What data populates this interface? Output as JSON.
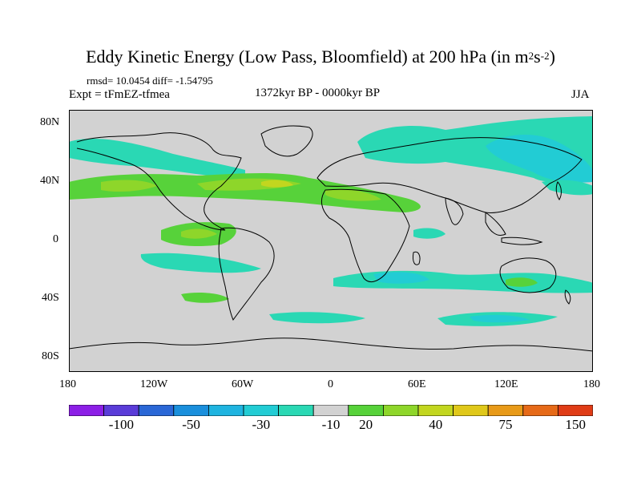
{
  "title": {
    "text": "Eddy Kinetic Energy (Low Pass, Bloomfield) at 200 hPa (in m",
    "sup1": "2",
    "mid": "s",
    "sup2": "-2",
    "end": ")"
  },
  "stats": "rmsd= 10.0454 diff= -1.54795",
  "expt": "Expt = tFmEZ-tfmea",
  "period": "1372kyr BP - 0000kyr BP",
  "season": "JJA",
  "y_ticks": [
    "80N",
    "40N",
    "0",
    "40S",
    "80S"
  ],
  "x_ticks": [
    "180",
    "120W",
    "60W",
    "0",
    "60E",
    "120E",
    "180"
  ],
  "colorbar": {
    "colors": [
      "#8c1fe6",
      "#5a3cd8",
      "#2a67d6",
      "#1a8fdc",
      "#1fb4e0",
      "#22ccd4",
      "#2ad8b4",
      "#d2d2d2",
      "#57d23a",
      "#8ed62a",
      "#c2d61f",
      "#e0c81a",
      "#e89a18",
      "#e66a18",
      "#e03c16"
    ],
    "labels": [
      "-100",
      "-50",
      "-30",
      "-10",
      "20",
      "40",
      "75",
      "150"
    ]
  },
  "colors": {
    "ocean_neutral": "#d2d2d2",
    "positive_light": "#57d23a",
    "positive_mid": "#8ed62a",
    "positive_high": "#c2d61f",
    "negative_light": "#2ad8b4",
    "negative_mid": "#22ccd4",
    "negative_high": "#1fb4e0",
    "coast": "#000000"
  }
}
